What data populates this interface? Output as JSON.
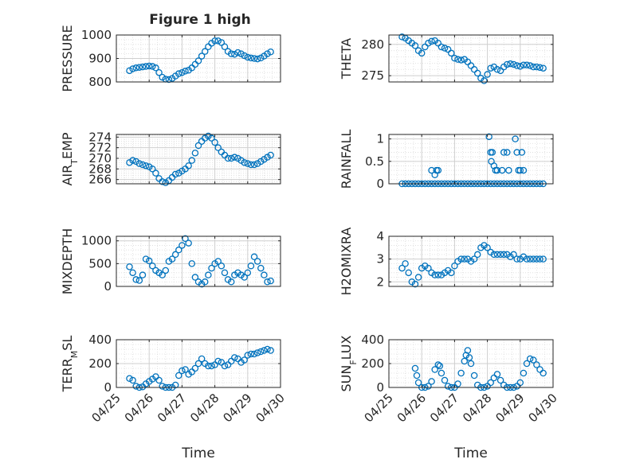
{
  "figure": {
    "title": "Figure 1 high",
    "xlabel": "Time",
    "x_tick_labels": [
      "04/25",
      "04/26",
      "04/27",
      "04/28",
      "04/29",
      "04/30"
    ]
  },
  "colors": {
    "marker": "#0072BD",
    "grid": "#dcdcdc",
    "axis": "#262626"
  },
  "chart_data": [
    {
      "type": "scatter",
      "ylabel": "PRESSURE",
      "ylim": [
        800,
        1000
      ],
      "yticks": [
        800,
        900,
        1000
      ],
      "xlim": [
        "2014-04-25",
        "2014-04-30"
      ],
      "grid": true,
      "x": [
        25.4,
        25.5,
        25.6,
        25.7,
        25.8,
        25.9,
        26.0,
        26.1,
        26.2,
        26.3,
        26.4,
        26.5,
        26.6,
        26.7,
        26.8,
        26.9,
        27.0,
        27.1,
        27.2,
        27.3,
        27.4,
        27.5,
        27.6,
        27.7,
        27.8,
        27.9,
        28.0,
        28.1,
        28.2,
        28.3,
        28.4,
        28.5,
        28.6,
        28.7,
        28.8,
        28.9,
        29.0,
        29.1,
        29.2,
        29.3,
        29.4,
        29.5,
        29.6,
        29.7
      ],
      "y": [
        848,
        856,
        860,
        862,
        864,
        866,
        868,
        866,
        860,
        840,
        820,
        812,
        810,
        815,
        825,
        835,
        840,
        846,
        850,
        860,
        875,
        890,
        910,
        930,
        950,
        965,
        975,
        975,
        968,
        950,
        930,
        920,
        918,
        925,
        920,
        912,
        905,
        902,
        900,
        898,
        902,
        910,
        920,
        928
      ]
    },
    {
      "type": "scatter",
      "ylabel": "THETA",
      "ylim": [
        274,
        281.5
      ],
      "yticks": [
        275,
        280
      ],
      "xlim": [
        "2014-04-25",
        "2014-04-30"
      ],
      "grid": true,
      "x": [
        25.4,
        25.5,
        25.6,
        25.7,
        25.8,
        25.9,
        26.0,
        26.1,
        26.2,
        26.3,
        26.4,
        26.5,
        26.6,
        26.7,
        26.8,
        26.9,
        27.0,
        27.1,
        27.2,
        27.3,
        27.4,
        27.5,
        27.6,
        27.7,
        27.8,
        27.9,
        28.0,
        28.1,
        28.2,
        28.3,
        28.4,
        28.5,
        28.6,
        28.7,
        28.8,
        28.9,
        29.0,
        29.1,
        29.2,
        29.3,
        29.4,
        29.5,
        29.6,
        29.7
      ],
      "y": [
        281.2,
        281.0,
        280.6,
        280.2,
        279.8,
        279.0,
        278.6,
        279.6,
        280.2,
        280.5,
        280.6,
        280.2,
        279.6,
        279.4,
        279.2,
        278.6,
        277.8,
        277.6,
        277.5,
        277.6,
        277.2,
        276.6,
        276.0,
        275.4,
        274.6,
        274.2,
        275.2,
        276.2,
        276.4,
        276.0,
        275.8,
        276.4,
        276.8,
        276.9,
        276.8,
        276.6,
        276.5,
        276.7,
        276.7,
        276.6,
        276.4,
        276.4,
        276.3,
        276.2
      ]
    },
    {
      "type": "scatter",
      "ylabel": "AIR_TEMP",
      "ylim": [
        265.2,
        274.5
      ],
      "yticks": [
        266,
        268,
        270,
        272,
        274
      ],
      "xlim": [
        "2014-04-25",
        "2014-04-30"
      ],
      "grid": true,
      "x": [
        25.4,
        25.5,
        25.6,
        25.7,
        25.8,
        25.9,
        26.0,
        26.1,
        26.2,
        26.3,
        26.4,
        26.5,
        26.6,
        26.7,
        26.8,
        26.9,
        27.0,
        27.1,
        27.2,
        27.3,
        27.4,
        27.5,
        27.6,
        27.7,
        27.8,
        27.9,
        28.0,
        28.1,
        28.2,
        28.3,
        28.4,
        28.5,
        28.6,
        28.7,
        28.8,
        28.9,
        29.0,
        29.1,
        29.2,
        29.3,
        29.4,
        29.5,
        29.6,
        29.7
      ],
      "y": [
        269.2,
        269.6,
        269.4,
        269.0,
        268.8,
        268.6,
        268.4,
        268.0,
        267.2,
        266.2,
        265.6,
        265.4,
        265.8,
        266.4,
        267.0,
        267.2,
        267.6,
        268.0,
        268.6,
        269.6,
        271.0,
        272.4,
        273.2,
        273.8,
        274.2,
        273.8,
        273.0,
        272.0,
        271.2,
        270.6,
        270.0,
        270.0,
        270.2,
        270.0,
        269.6,
        269.2,
        269.0,
        268.8,
        268.8,
        269.0,
        269.4,
        269.8,
        270.2,
        270.6
      ]
    },
    {
      "type": "scatter",
      "ylabel": "RAINFALL",
      "ylim": [
        0,
        1.1
      ],
      "yticks": [
        0,
        0.5,
        1
      ],
      "xlim": [
        "2014-04-25",
        "2014-04-30"
      ],
      "grid": true,
      "x": [
        25.4,
        25.5,
        25.6,
        25.7,
        25.8,
        25.9,
        26.0,
        26.1,
        26.2,
        26.3,
        26.4,
        26.5,
        26.6,
        26.7,
        26.8,
        26.9,
        27.0,
        27.1,
        27.2,
        27.3,
        27.4,
        27.5,
        27.6,
        27.7,
        27.8,
        27.9,
        28.0,
        28.1,
        28.2,
        28.3,
        28.4,
        28.5,
        28.6,
        28.7,
        28.8,
        28.9,
        29.0,
        29.1,
        29.2,
        29.3,
        29.4,
        29.5,
        29.6,
        29.7,
        26.3,
        26.4,
        26.45,
        26.5,
        28.05,
        28.1,
        28.12,
        28.15,
        28.2,
        28.25,
        28.3,
        28.45,
        28.5,
        28.6,
        28.65,
        28.85,
        28.9,
        28.95,
        29.0,
        29.05,
        29.1
      ],
      "y": [
        0,
        0,
        0,
        0,
        0,
        0,
        0,
        0,
        0,
        0,
        0,
        0,
        0,
        0,
        0,
        0,
        0,
        0,
        0,
        0,
        0,
        0,
        0,
        0,
        0,
        0,
        0,
        0,
        0,
        0,
        0,
        0,
        0,
        0,
        0,
        0,
        0,
        0,
        0,
        0,
        0,
        0,
        0,
        0,
        0.3,
        0.2,
        0.3,
        0.3,
        1.05,
        0.7,
        0.5,
        0.7,
        0.4,
        0.3,
        0.3,
        0.3,
        0.7,
        0.7,
        0.3,
        1.0,
        0.7,
        0.3,
        0.3,
        0.7,
        0.3
      ]
    },
    {
      "type": "scatter",
      "ylabel": "MIXDEPTH",
      "ylim": [
        0,
        1100
      ],
      "yticks": [
        0,
        500,
        1000
      ],
      "xlim": [
        "2014-04-25",
        "2014-04-30"
      ],
      "grid": true,
      "x": [
        25.4,
        25.5,
        25.6,
        25.7,
        25.8,
        25.9,
        26.0,
        26.1,
        26.2,
        26.3,
        26.4,
        26.5,
        26.6,
        26.7,
        26.8,
        26.9,
        27.0,
        27.1,
        27.2,
        27.3,
        27.4,
        27.5,
        27.6,
        27.7,
        27.8,
        27.9,
        28.0,
        28.1,
        28.2,
        28.3,
        28.4,
        28.5,
        28.6,
        28.7,
        28.8,
        28.9,
        29.0,
        29.1,
        29.2,
        29.3,
        29.4,
        29.5,
        29.6,
        29.7
      ],
      "y": [
        430,
        300,
        150,
        130,
        250,
        600,
        560,
        450,
        350,
        300,
        250,
        350,
        550,
        600,
        700,
        800,
        900,
        1050,
        950,
        500,
        200,
        100,
        50,
        100,
        250,
        400,
        500,
        550,
        450,
        300,
        150,
        100,
        250,
        300,
        250,
        200,
        300,
        450,
        650,
        550,
        400,
        250,
        100,
        120
      ]
    },
    {
      "type": "scatter",
      "ylabel": "H2OMIXRA",
      "ylim": [
        1.8,
        4
      ],
      "yticks": [
        2,
        3,
        4
      ],
      "xlim": [
        "2014-04-25",
        "2014-04-30"
      ],
      "grid": true,
      "x": [
        25.4,
        25.5,
        25.6,
        25.7,
        25.8,
        25.9,
        26.0,
        26.1,
        26.2,
        26.3,
        26.4,
        26.5,
        26.6,
        26.7,
        26.8,
        26.9,
        27.0,
        27.1,
        27.2,
        27.3,
        27.4,
        27.5,
        27.6,
        27.7,
        27.8,
        27.9,
        28.0,
        28.1,
        28.2,
        28.3,
        28.4,
        28.5,
        28.6,
        28.7,
        28.8,
        28.9,
        29.0,
        29.1,
        29.2,
        29.3,
        29.4,
        29.5,
        29.6,
        29.7
      ],
      "y": [
        2.6,
        2.8,
        2.4,
        2.0,
        1.9,
        2.2,
        2.6,
        2.7,
        2.6,
        2.4,
        2.3,
        2.3,
        2.3,
        2.4,
        2.5,
        2.4,
        2.7,
        2.9,
        3.0,
        3.0,
        3.0,
        2.9,
        3.0,
        3.2,
        3.5,
        3.6,
        3.5,
        3.3,
        3.2,
        3.2,
        3.2,
        3.2,
        3.2,
        3.1,
        3.2,
        3.0,
        3.0,
        3.1,
        3.0,
        3.0,
        3.0,
        3.0,
        3.0,
        3.0
      ]
    },
    {
      "type": "scatter",
      "ylabel": "TERR_MSL",
      "ylim": [
        0,
        400
      ],
      "yticks": [
        0,
        200,
        400
      ],
      "xlim": [
        "2014-04-25",
        "2014-04-30"
      ],
      "grid": true,
      "x": [
        25.4,
        25.5,
        25.6,
        25.7,
        25.8,
        25.9,
        26.0,
        26.1,
        26.2,
        26.3,
        26.4,
        26.5,
        26.6,
        26.7,
        26.8,
        26.9,
        27.0,
        27.1,
        27.2,
        27.3,
        27.4,
        27.5,
        27.6,
        27.7,
        27.8,
        27.9,
        28.0,
        28.1,
        28.2,
        28.3,
        28.4,
        28.5,
        28.6,
        28.7,
        28.8,
        28.9,
        29.0,
        29.1,
        29.2,
        29.3,
        29.4,
        29.5,
        29.6,
        29.7
      ],
      "y": [
        75,
        60,
        10,
        0,
        5,
        30,
        50,
        70,
        90,
        60,
        10,
        0,
        0,
        0,
        20,
        100,
        140,
        150,
        110,
        130,
        160,
        200,
        240,
        200,
        180,
        180,
        190,
        220,
        210,
        180,
        190,
        220,
        250,
        240,
        210,
        230,
        270,
        280,
        280,
        290,
        300,
        310,
        320,
        310
      ]
    },
    {
      "type": "scatter",
      "ylabel": "SUN_FLUX",
      "ylim": [
        0,
        400
      ],
      "yticks": [
        0,
        200,
        400
      ],
      "xlim": [
        "2014-04-25",
        "2014-04-30"
      ],
      "grid": true,
      "x": [
        25.8,
        25.85,
        25.9,
        26.0,
        26.1,
        26.2,
        26.3,
        26.4,
        26.5,
        26.55,
        26.6,
        26.7,
        26.8,
        26.9,
        27.0,
        27.1,
        27.2,
        27.3,
        27.35,
        27.4,
        27.45,
        27.5,
        27.6,
        27.7,
        27.8,
        27.9,
        28.0,
        28.1,
        28.2,
        28.3,
        28.4,
        28.5,
        28.6,
        28.7,
        28.8,
        28.9,
        29.0,
        29.1,
        29.2,
        29.3,
        29.4,
        29.5,
        29.6,
        29.7
      ],
      "y": [
        160,
        100,
        40,
        0,
        0,
        10,
        50,
        150,
        190,
        180,
        120,
        60,
        10,
        0,
        0,
        30,
        120,
        220,
        270,
        310,
        250,
        200,
        100,
        20,
        0,
        0,
        10,
        40,
        80,
        110,
        60,
        20,
        0,
        0,
        0,
        10,
        40,
        120,
        200,
        240,
        230,
        190,
        150,
        120
      ]
    }
  ]
}
